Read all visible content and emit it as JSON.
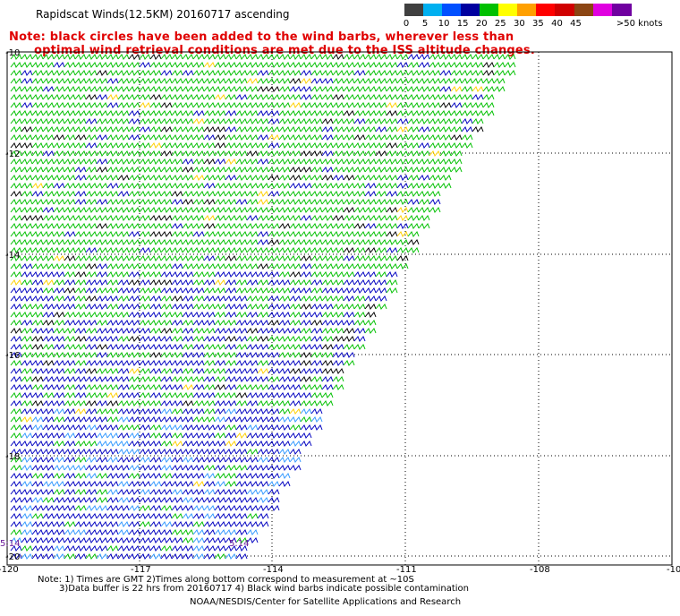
{
  "header": {
    "title": "Rapidscat Winds(12.5KM) 20160717 ascending",
    "note_line1": "Note: black circles have been added to the wind barbs, wherever less than",
    "note_line2": "optimal wind retrieval conditions are met due to the ISS altitude changes."
  },
  "legend": {
    "unit": "knots",
    "items": [
      {
        "label": "0",
        "color": "#404040"
      },
      {
        "label": "5",
        "color": "#00b0f0"
      },
      {
        "label": "10",
        "color": "#0050ff"
      },
      {
        "label": "15",
        "color": "#0000a0"
      },
      {
        "label": "20",
        "color": "#00c000"
      },
      {
        "label": "25",
        "color": "#ffff00"
      },
      {
        "label": "30",
        "color": "#ffa000"
      },
      {
        "label": "35",
        "color": "#ff0000"
      },
      {
        "label": "40",
        "color": "#d00000"
      },
      {
        "label": "45",
        "color": "#8b4513"
      },
      {
        "label": ">50",
        "color": "#e000e0"
      },
      {
        "label": "",
        "color": "#7000a0"
      }
    ],
    "last_label": ">50 knots"
  },
  "map": {
    "lon_ticks": [
      "-120",
      "-117",
      "-114",
      "-111",
      "-108",
      "-10"
    ],
    "lat_ticks": [
      "-10",
      "-12",
      "-14",
      "-16",
      "-18",
      "-20"
    ],
    "pass_times": [
      "5:14",
      "5:14"
    ],
    "grid": true,
    "barb_colors": {
      "weak": "#0000c0",
      "moderate": "#00c000",
      "light": "#3399ff",
      "yellow": "#ffd000",
      "contaminated": "#000000"
    }
  },
  "footer": {
    "line1": "Note: 1) Times are GMT 2)Times along bottom correspond to measurement at ~10S",
    "line2": "3)Data buffer is 22 hrs from 20160717 4) Black wind barbs indicate possible contamination",
    "line3": "NOAA/NESDIS/Center for Satellite Applications and Research"
  }
}
